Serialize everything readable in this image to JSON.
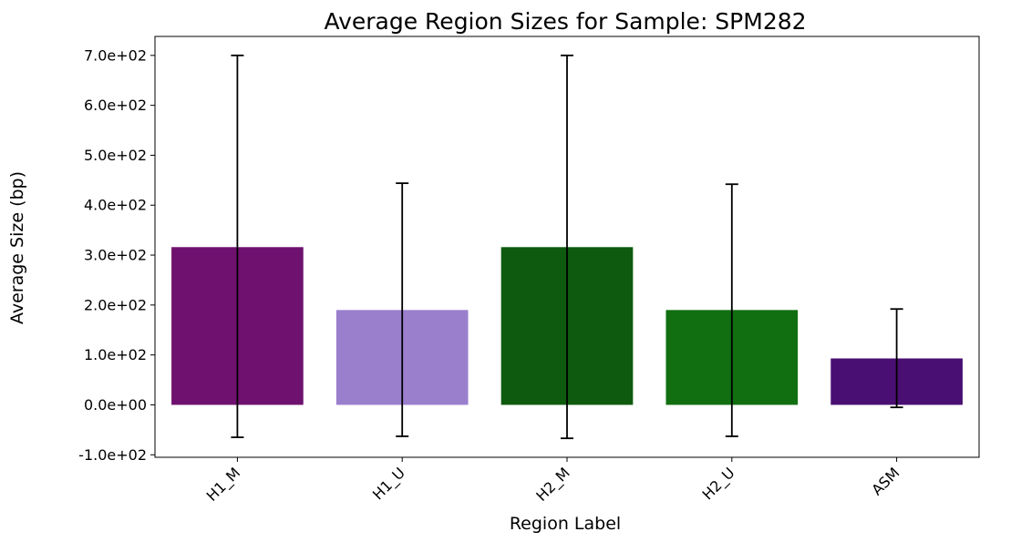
{
  "chart_data": {
    "type": "bar",
    "title": "Average Region Sizes for Sample: SPM282",
    "xlabel": "Region Label",
    "ylabel": "Average Size (bp)",
    "categories": [
      "H1_M",
      "H1_U",
      "H2_M",
      "H2_U",
      "ASM"
    ],
    "values": [
      316,
      190,
      316,
      190,
      93
    ],
    "error_low": [
      -65,
      -63,
      -67,
      -63,
      -5
    ],
    "error_high": [
      700,
      444,
      700,
      442,
      192
    ],
    "bar_colors": [
      "#6f116f",
      "#9a7fcd",
      "#0e5a0e",
      "#116f11",
      "#4a0f73"
    ],
    "error_color": "#000000",
    "ylim": [
      -105,
      738
    ],
    "yticks": [
      -100,
      0,
      100,
      200,
      300,
      400,
      500,
      600,
      700
    ],
    "ytick_labels": [
      "-1.0e+02",
      "0.0e+00",
      "1.0e+02",
      "2.0e+02",
      "3.0e+02",
      "4.0e+02",
      "5.0e+02",
      "6.0e+02",
      "7.0e+02"
    ],
    "xtick_rotation_deg": 45,
    "grid": false,
    "legend": "none"
  }
}
